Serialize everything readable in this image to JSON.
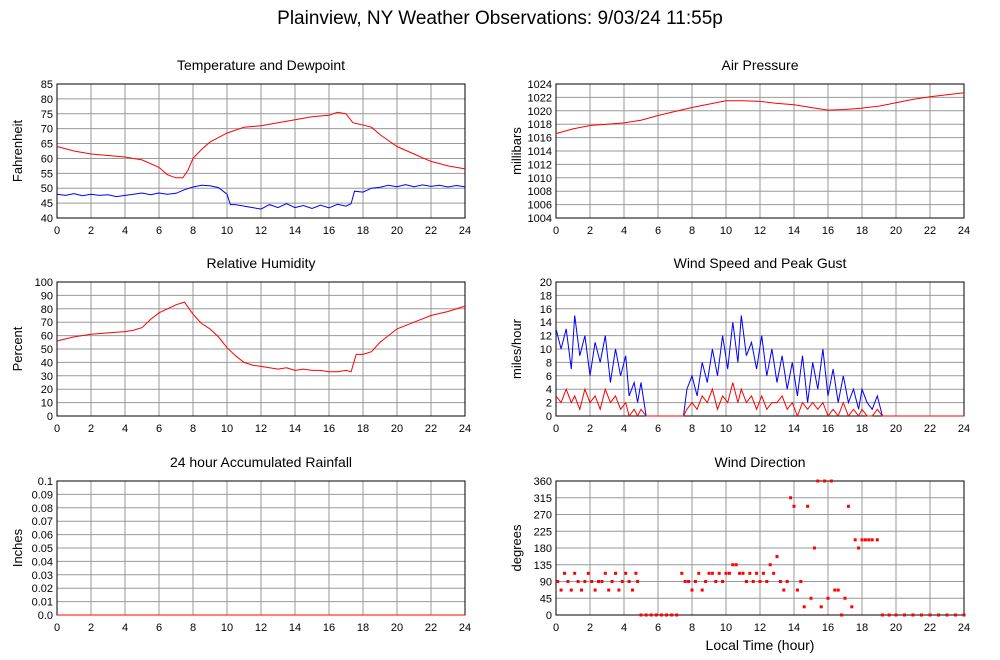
{
  "page": {
    "title": "Plainview, NY Weather Observations: 9/03/24 11:55p",
    "x_axis_label": "Local Time (hour)"
  },
  "colors": {
    "red": "#ff0000",
    "blue": "#0000ff",
    "grid": "#999999",
    "frame": "#000000"
  },
  "chart_data": [
    {
      "id": "temperature",
      "type": "line",
      "title": "Temperature and Dewpoint",
      "xlabel": "",
      "ylabel": "Fahrenheit",
      "xlim": [
        0,
        24
      ],
      "ylim": [
        40,
        85
      ],
      "xticks": [
        0,
        2,
        4,
        6,
        8,
        10,
        12,
        14,
        16,
        18,
        20,
        22,
        24
      ],
      "yticks": [
        40,
        45,
        50,
        55,
        60,
        65,
        70,
        75,
        80,
        85
      ],
      "grid": true,
      "series": [
        {
          "color": "red",
          "x": [
            0,
            1,
            2,
            3,
            4,
            5,
            6,
            6.5,
            7,
            7.4,
            7.7,
            8,
            8.5,
            9,
            10,
            11,
            12,
            13,
            14,
            15,
            16,
            16.5,
            17,
            17.4,
            17.8,
            18.5,
            19,
            20,
            21,
            22,
            23,
            24
          ],
          "y": [
            64,
            62.5,
            61.5,
            61,
            60.5,
            59.5,
            57,
            54.5,
            53.5,
            53.5,
            56,
            60,
            63,
            65.5,
            68.5,
            70.5,
            71,
            72,
            73,
            74,
            74.5,
            75.5,
            75,
            72,
            71.5,
            70.5,
            68,
            64,
            61.5,
            59,
            57.5,
            56.5
          ]
        },
        {
          "color": "blue",
          "x": [
            0,
            0.5,
            1,
            1.5,
            2,
            2.5,
            3,
            3.5,
            4,
            4.5,
            5,
            5.5,
            6,
            6.5,
            7,
            7.5,
            8,
            8.5,
            9,
            9.5,
            10,
            10.2,
            10.5,
            11,
            11.5,
            12,
            12.5,
            13,
            13.5,
            14,
            14.5,
            15,
            15.5,
            16,
            16.5,
            17,
            17.3,
            17.5,
            18,
            18.5,
            19,
            19.5,
            20,
            20.5,
            21,
            21.5,
            22,
            22.5,
            23,
            23.5,
            24
          ],
          "y": [
            48,
            47.6,
            48.2,
            47.5,
            48,
            47.6,
            47.8,
            47.2,
            47.6,
            48,
            48.4,
            47.8,
            48.4,
            48,
            48.3,
            49.5,
            50.4,
            51,
            50.8,
            50.2,
            48,
            44.5,
            44.5,
            44,
            43.5,
            43,
            44.5,
            43.5,
            44.8,
            43.5,
            44.2,
            43.2,
            44.3,
            43.4,
            44.6,
            44,
            44.8,
            49,
            48.7,
            50,
            50.3,
            51,
            50.5,
            51.2,
            50.5,
            51.1,
            50.6,
            51,
            50.4,
            50.9,
            50.5
          ]
        }
      ]
    },
    {
      "id": "pressure",
      "type": "line",
      "title": "Air Pressure",
      "xlabel": "",
      "ylabel": "millibars",
      "xlim": [
        0,
        24
      ],
      "ylim": [
        1004,
        1024
      ],
      "xticks": [
        0,
        2,
        4,
        6,
        8,
        10,
        12,
        14,
        16,
        18,
        20,
        22,
        24
      ],
      "yticks": [
        1004,
        1006,
        1008,
        1010,
        1012,
        1014,
        1016,
        1018,
        1020,
        1022,
        1024
      ],
      "grid": true,
      "series": [
        {
          "color": "red",
          "x": [
            0,
            1,
            2,
            3,
            4,
            5,
            6,
            7,
            8,
            9,
            10,
            11,
            12,
            13,
            14,
            15,
            16,
            17,
            18,
            19,
            20,
            21,
            22,
            23,
            24
          ],
          "y": [
            1016.6,
            1017.3,
            1017.8,
            1018,
            1018.2,
            1018.6,
            1019.3,
            1019.9,
            1020.5,
            1021,
            1021.5,
            1021.5,
            1021.4,
            1021.1,
            1020.9,
            1020.5,
            1020.1,
            1020.2,
            1020.4,
            1020.7,
            1021.2,
            1021.7,
            1022.1,
            1022.4,
            1022.7
          ]
        }
      ]
    },
    {
      "id": "humidity",
      "type": "line",
      "title": "Relative Humidity",
      "xlabel": "",
      "ylabel": "Percent",
      "xlim": [
        0,
        24
      ],
      "ylim": [
        0,
        100
      ],
      "xticks": [
        0,
        2,
        4,
        6,
        8,
        10,
        12,
        14,
        16,
        18,
        20,
        22,
        24
      ],
      "yticks": [
        0,
        10,
        20,
        30,
        40,
        50,
        60,
        70,
        80,
        90,
        100
      ],
      "grid": true,
      "series": [
        {
          "color": "red",
          "x": [
            0,
            1,
            2,
            3,
            4,
            4.5,
            5,
            5.5,
            6,
            6.5,
            7,
            7.5,
            8,
            8.5,
            9,
            9.5,
            10,
            10.5,
            11,
            11.5,
            12,
            12.5,
            13,
            13.5,
            14,
            14.5,
            15,
            15.5,
            16,
            16.5,
            17,
            17.3,
            17.6,
            18,
            18.5,
            19,
            20,
            21,
            22,
            23,
            24
          ],
          "y": [
            56,
            59,
            61,
            62,
            63,
            64,
            66,
            72,
            77,
            80,
            83,
            85,
            76,
            69,
            65,
            59,
            51,
            45,
            40,
            38,
            37,
            36,
            35,
            36,
            34,
            35,
            34,
            34,
            33,
            33,
            34,
            33,
            46,
            46,
            48,
            55,
            65,
            70,
            75,
            78,
            82
          ]
        }
      ]
    },
    {
      "id": "wind-speed",
      "type": "line",
      "title": "Wind Speed and Peak Gust",
      "xlabel": "",
      "ylabel": "miles/hour",
      "xlim": [
        0,
        24
      ],
      "ylim": [
        0,
        20
      ],
      "xticks": [
        0,
        2,
        4,
        6,
        8,
        10,
        12,
        14,
        16,
        18,
        20,
        22,
        24
      ],
      "yticks": [
        0,
        2,
        4,
        6,
        8,
        10,
        12,
        14,
        16,
        18,
        20
      ],
      "grid": true,
      "series": [
        {
          "color": "blue",
          "x": [
            0,
            0.3,
            0.6,
            0.9,
            1.1,
            1.4,
            1.7,
            2,
            2.3,
            2.6,
            2.9,
            3.2,
            3.5,
            3.8,
            4.1,
            4.3,
            4.6,
            4.8,
            5,
            5.3,
            7.5,
            7.7,
            8,
            8.3,
            8.6,
            8.9,
            9.2,
            9.5,
            9.8,
            10.1,
            10.4,
            10.7,
            10.9,
            11.2,
            11.5,
            11.8,
            12.1,
            12.4,
            12.7,
            13,
            13.3,
            13.6,
            13.9,
            14.2,
            14.5,
            14.8,
            15.1,
            15.4,
            15.7,
            16,
            16.3,
            16.6,
            16.9,
            17.2,
            17.5,
            17.8,
            18,
            18.3,
            18.6,
            18.9,
            19.2,
            24
          ],
          "y": [
            13,
            10,
            13,
            7,
            15,
            9,
            12,
            6,
            11,
            8,
            12,
            5,
            10,
            6,
            9,
            3,
            5,
            2,
            5,
            0,
            0,
            4,
            6,
            3,
            8,
            5,
            10,
            6,
            12,
            7,
            14,
            8,
            15,
            9,
            11,
            7,
            12,
            6,
            10,
            5,
            9,
            4,
            8,
            3,
            9,
            2,
            8,
            4,
            10,
            3,
            7,
            2,
            6,
            2,
            4,
            1,
            4,
            2,
            1,
            3,
            0,
            0
          ]
        },
        {
          "color": "red",
          "x": [
            0,
            0.3,
            0.6,
            0.9,
            1.1,
            1.4,
            1.7,
            2,
            2.3,
            2.6,
            2.9,
            3.2,
            3.5,
            3.8,
            4.1,
            4.3,
            4.6,
            4.8,
            5,
            5.3,
            7.5,
            7.7,
            8,
            8.3,
            8.6,
            8.9,
            9.2,
            9.5,
            9.8,
            10.1,
            10.4,
            10.7,
            10.9,
            11.2,
            11.5,
            11.8,
            12.1,
            12.4,
            12.7,
            13,
            13.3,
            13.6,
            13.9,
            14.2,
            14.5,
            14.8,
            15.1,
            15.4,
            15.7,
            16,
            16.3,
            16.6,
            16.9,
            17.2,
            17.5,
            17.8,
            18,
            18.3,
            18.6,
            18.9,
            19.2,
            24
          ],
          "y": [
            3,
            2,
            4,
            2,
            3,
            1,
            4,
            2,
            3,
            1,
            4,
            2,
            3,
            1,
            2,
            0,
            1,
            0,
            1,
            0,
            0,
            1,
            2,
            1,
            3,
            2,
            4,
            1,
            3,
            2,
            5,
            2,
            4,
            2,
            3,
            1,
            3,
            1,
            2,
            2,
            3,
            1,
            2,
            0,
            2,
            1,
            2,
            1,
            2,
            0,
            1,
            0,
            2,
            0,
            1,
            0,
            1,
            0,
            0,
            1,
            0,
            0
          ]
        }
      ]
    },
    {
      "id": "rainfall",
      "type": "line",
      "title": "24 hour Accumulated Rainfall",
      "xlabel": "",
      "ylabel": "Inches",
      "xlim": [
        0,
        24
      ],
      "ylim": [
        0,
        0.1
      ],
      "xticks": [
        0,
        2,
        4,
        6,
        8,
        10,
        12,
        14,
        16,
        18,
        20,
        22,
        24
      ],
      "yticks": [
        "0.0",
        "0.01",
        "0.02",
        "0.03",
        "0.04",
        "0.05",
        "0.06",
        "0.07",
        "0.08",
        "0.09",
        "0.1"
      ],
      "grid": true,
      "series": [
        {
          "color": "red",
          "x": [
            0,
            24
          ],
          "y": [
            0,
            0
          ]
        }
      ]
    },
    {
      "id": "wind-direction",
      "type": "scatter",
      "title": "Wind Direction",
      "xlabel": "Local Time (hour)",
      "ylabel": "degrees",
      "xlim": [
        0,
        24
      ],
      "ylim": [
        0,
        360
      ],
      "xticks": [
        0,
        2,
        4,
        6,
        8,
        10,
        12,
        14,
        16,
        18,
        20,
        22,
        24
      ],
      "yticks": [
        0,
        45,
        90,
        135,
        180,
        225,
        270,
        315,
        360
      ],
      "grid": true,
      "series": [
        {
          "color": "red",
          "x": [
            0.1,
            0.3,
            0.5,
            0.7,
            0.9,
            1.1,
            1.3,
            1.5,
            1.7,
            1.9,
            2.1,
            2.3,
            2.5,
            2.7,
            2.9,
            3.1,
            3.3,
            3.5,
            3.7,
            3.9,
            4.1,
            4.3,
            4.5,
            4.7,
            4.8,
            5.0,
            5.3,
            5.6,
            5.9,
            6.2,
            6.5,
            6.8,
            7.1,
            7.4,
            7.6,
            7.8,
            8.0,
            8.2,
            8.4,
            8.6,
            8.8,
            9.0,
            9.2,
            9.4,
            9.6,
            9.8,
            10.0,
            10.2,
            10.4,
            10.6,
            10.8,
            11.0,
            11.2,
            11.4,
            11.6,
            11.8,
            12.0,
            12.2,
            12.4,
            12.6,
            12.8,
            13.0,
            13.2,
            13.4,
            13.6,
            13.8,
            14.0,
            14.2,
            14.4,
            14.6,
            14.8,
            15.0,
            15.2,
            15.4,
            15.6,
            15.8,
            16.0,
            16.2,
            16.4,
            16.6,
            16.8,
            17.0,
            17.2,
            17.4,
            17.6,
            17.8,
            18.0,
            18.2,
            18.4,
            18.6,
            18.9,
            19.2,
            19.6,
            20.0,
            20.5,
            21.0,
            21.5,
            22.0,
            22.5,
            23.0,
            23.5,
            24.0
          ],
          "y": [
            90,
            67,
            112,
            90,
            67,
            112,
            90,
            67,
            90,
            112,
            90,
            67,
            90,
            90,
            112,
            67,
            90,
            112,
            67,
            90,
            112,
            90,
            67,
            112,
            90,
            0,
            0,
            0,
            0,
            0,
            0,
            0,
            0,
            112,
            90,
            90,
            67,
            90,
            112,
            67,
            90,
            112,
            112,
            90,
            112,
            90,
            112,
            112,
            135,
            135,
            112,
            112,
            90,
            112,
            90,
            112,
            90,
            112,
            90,
            135,
            112,
            157,
            90,
            67,
            90,
            315,
            292,
            67,
            90,
            22,
            292,
            45,
            180,
            360,
            22,
            360,
            45,
            360,
            67,
            67,
            0,
            45,
            292,
            22,
            202,
            180,
            202,
            202,
            202,
            202,
            202,
            0,
            0,
            0,
            0,
            0,
            0,
            0,
            0,
            0,
            0,
            0
          ]
        }
      ]
    }
  ]
}
